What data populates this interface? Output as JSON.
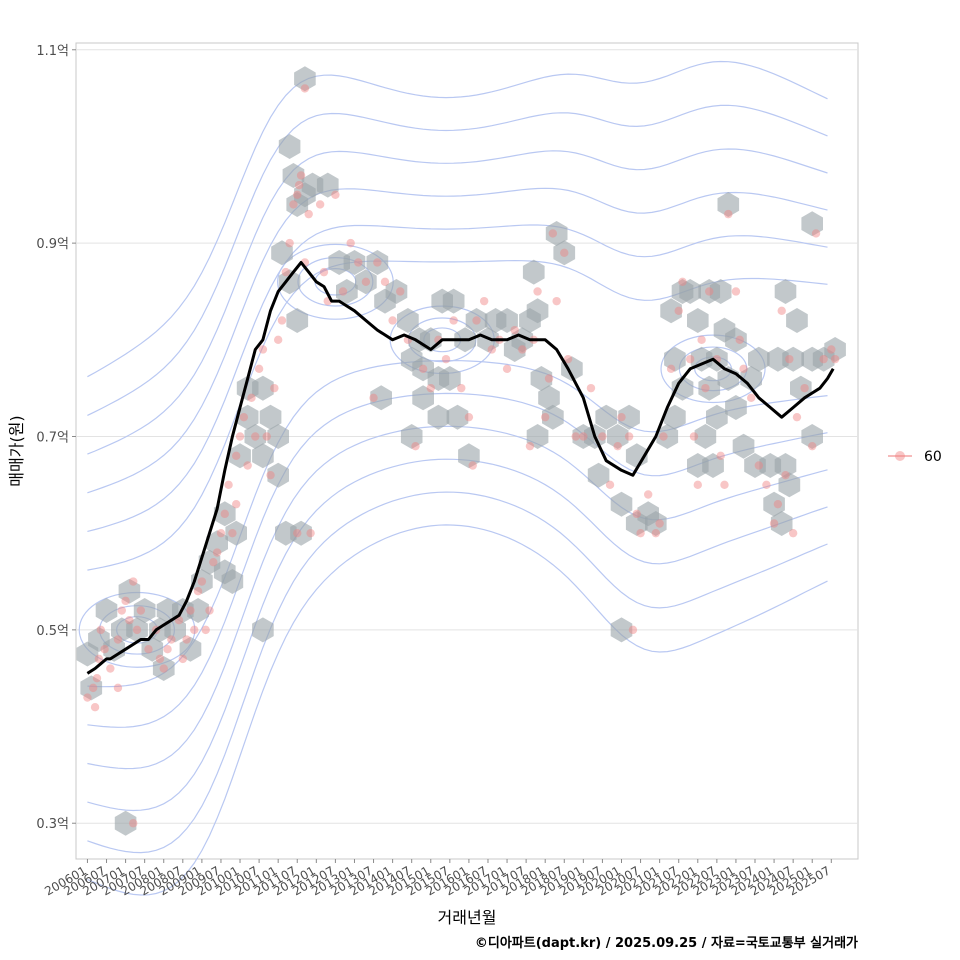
{
  "chart_data": {
    "type": "scatter",
    "title": "",
    "xlabel": "거래년월",
    "ylabel": "매매가(원)",
    "caption": "©디아파트(dapt.kr) / 2025.09.25 / 자료=국토교통부 실거래가",
    "x_ticks": [
      "200601",
      "200607",
      "200701",
      "200707",
      "200801",
      "200807",
      "200901",
      "200907",
      "201001",
      "201007",
      "201101",
      "201107",
      "201201",
      "201207",
      "201301",
      "201307",
      "201401",
      "201407",
      "201501",
      "201507",
      "201601",
      "201607",
      "201701",
      "201707",
      "201801",
      "201807",
      "201901",
      "201907",
      "202001",
      "202007",
      "202101",
      "202107",
      "202201",
      "202207",
      "202301",
      "202307",
      "202401",
      "202407",
      "202501",
      "202507"
    ],
    "y_ticks": [
      {
        "value": 0.3,
        "label": "0.3억"
      },
      {
        "value": 0.5,
        "label": "0.5억"
      },
      {
        "value": 0.7,
        "label": "0.7억"
      },
      {
        "value": 0.9,
        "label": "0.9억"
      },
      {
        "value": 1.1,
        "label": "1.1억"
      }
    ],
    "xlim": [
      2005.7,
      2026.2
    ],
    "ylim": [
      0.263,
      1.107
    ],
    "legend": {
      "label": "60",
      "position": "right"
    },
    "trend_line": {
      "name": "moving-average",
      "x": [
        2006.0,
        2006.2,
        2006.35,
        2006.5,
        2006.6,
        2006.8,
        2007.0,
        2007.2,
        2007.4,
        2007.6,
        2007.8,
        2008.0,
        2008.2,
        2008.4,
        2008.6,
        2008.8,
        2009.0,
        2009.2,
        2009.4,
        2009.6,
        2009.8,
        2010.0,
        2010.2,
        2010.4,
        2010.6,
        2010.8,
        2011.0,
        2011.2,
        2011.4,
        2011.6,
        2011.8,
        2012.0,
        2012.2,
        2012.4,
        2012.6,
        2012.8,
        2013.0,
        2013.3,
        2013.6,
        2014.0,
        2014.3,
        2014.6,
        2015.0,
        2015.3,
        2015.6,
        2016.0,
        2016.3,
        2016.6,
        2017.0,
        2017.3,
        2017.6,
        2018.0,
        2018.3,
        2018.6,
        2019.0,
        2019.3,
        2019.6,
        2020.0,
        2020.3,
        2020.6,
        2020.9,
        2021.2,
        2021.5,
        2021.8,
        2022.1,
        2022.4,
        2022.7,
        2023.0,
        2023.3,
        2023.6,
        2023.9,
        2024.2,
        2024.5,
        2024.8,
        2025.0,
        2025.2,
        2025.4,
        2025.55
      ],
      "y": [
        0.455,
        0.46,
        0.465,
        0.47,
        0.47,
        0.475,
        0.48,
        0.485,
        0.49,
        0.49,
        0.5,
        0.505,
        0.51,
        0.515,
        0.53,
        0.55,
        0.575,
        0.6,
        0.625,
        0.665,
        0.7,
        0.73,
        0.76,
        0.79,
        0.8,
        0.83,
        0.85,
        0.86,
        0.87,
        0.88,
        0.87,
        0.86,
        0.855,
        0.84,
        0.84,
        0.835,
        0.83,
        0.82,
        0.81,
        0.8,
        0.805,
        0.8,
        0.79,
        0.8,
        0.8,
        0.8,
        0.805,
        0.8,
        0.8,
        0.805,
        0.8,
        0.8,
        0.79,
        0.77,
        0.74,
        0.7,
        0.675,
        0.665,
        0.66,
        0.68,
        0.7,
        0.73,
        0.755,
        0.77,
        0.775,
        0.78,
        0.77,
        0.765,
        0.755,
        0.74,
        0.73,
        0.72,
        0.73,
        0.74,
        0.745,
        0.75,
        0.76,
        0.77
      ]
    },
    "series": [
      {
        "name": "60",
        "color": "#f08080",
        "points": [
          [
            2006.0,
            0.43
          ],
          [
            2006.15,
            0.44
          ],
          [
            2006.2,
            0.42
          ],
          [
            2006.25,
            0.45
          ],
          [
            2006.3,
            0.47
          ],
          [
            2006.35,
            0.5
          ],
          [
            2006.45,
            0.48
          ],
          [
            2006.6,
            0.46
          ],
          [
            2006.8,
            0.49
          ],
          [
            2006.9,
            0.52
          ],
          [
            2007.0,
            0.53
          ],
          [
            2007.1,
            0.51
          ],
          [
            2007.2,
            0.55
          ],
          [
            2007.3,
            0.5
          ],
          [
            2007.4,
            0.52
          ],
          [
            2007.6,
            0.48
          ],
          [
            2007.8,
            0.5
          ],
          [
            2007.9,
            0.47
          ],
          [
            2008.0,
            0.46
          ],
          [
            2008.2,
            0.49
          ],
          [
            2008.4,
            0.51
          ],
          [
            2008.5,
            0.47
          ],
          [
            2008.6,
            0.49
          ],
          [
            2008.7,
            0.52
          ],
          [
            2008.8,
            0.5
          ],
          [
            2008.9,
            0.54
          ],
          [
            2009.0,
            0.55
          ],
          [
            2009.1,
            0.5
          ],
          [
            2009.2,
            0.52
          ],
          [
            2009.3,
            0.57
          ],
          [
            2009.4,
            0.58
          ],
          [
            2009.5,
            0.6
          ],
          [
            2009.6,
            0.62
          ],
          [
            2009.7,
            0.65
          ],
          [
            2009.8,
            0.6
          ],
          [
            2009.9,
            0.68
          ],
          [
            2010.0,
            0.7
          ],
          [
            2010.1,
            0.72
          ],
          [
            2010.2,
            0.67
          ],
          [
            2010.3,
            0.74
          ],
          [
            2010.4,
            0.7
          ],
          [
            2010.5,
            0.77
          ],
          [
            2010.6,
            0.79
          ],
          [
            2010.7,
            0.7
          ],
          [
            2010.8,
            0.66
          ],
          [
            2010.9,
            0.75
          ],
          [
            2011.0,
            0.8
          ],
          [
            2011.1,
            0.82
          ],
          [
            2011.2,
            0.87
          ],
          [
            2011.3,
            0.9
          ],
          [
            2011.4,
            0.94
          ],
          [
            2011.5,
            0.95
          ],
          [
            2011.55,
            0.96
          ],
          [
            2011.6,
            0.97
          ],
          [
            2011.7,
            1.06
          ],
          [
            2011.8,
            0.93
          ],
          [
            2011.85,
            0.6
          ],
          [
            2011.7,
            0.88
          ],
          [
            2011.5,
            0.6
          ],
          [
            2012.1,
            0.94
          ],
          [
            2012.2,
            0.87
          ],
          [
            2012.3,
            0.84
          ],
          [
            2012.5,
            0.95
          ],
          [
            2012.7,
            0.85
          ],
          [
            2012.9,
            0.9
          ],
          [
            2013.1,
            0.88
          ],
          [
            2013.3,
            0.86
          ],
          [
            2013.5,
            0.74
          ],
          [
            2013.6,
            0.88
          ],
          [
            2013.8,
            0.86
          ],
          [
            2014.0,
            0.82
          ],
          [
            2014.2,
            0.85
          ],
          [
            2014.4,
            0.8
          ],
          [
            2014.6,
            0.69
          ],
          [
            2014.8,
            0.77
          ],
          [
            2015.0,
            0.75
          ],
          [
            2015.2,
            0.8
          ],
          [
            2015.4,
            0.78
          ],
          [
            2015.6,
            0.82
          ],
          [
            2015.8,
            0.75
          ],
          [
            2016.0,
            0.72
          ],
          [
            2016.1,
            0.67
          ],
          [
            2016.2,
            0.82
          ],
          [
            2016.4,
            0.84
          ],
          [
            2016.6,
            0.79
          ],
          [
            2016.8,
            0.8
          ],
          [
            2017.0,
            0.77
          ],
          [
            2017.2,
            0.81
          ],
          [
            2017.4,
            0.79
          ],
          [
            2017.6,
            0.69
          ],
          [
            2017.7,
            0.8
          ],
          [
            2017.8,
            0.85
          ],
          [
            2018.0,
            0.72
          ],
          [
            2018.1,
            0.76
          ],
          [
            2018.2,
            0.91
          ],
          [
            2018.3,
            0.84
          ],
          [
            2018.5,
            0.89
          ],
          [
            2018.6,
            0.78
          ],
          [
            2018.8,
            0.7
          ],
          [
            2019.0,
            0.7
          ],
          [
            2019.2,
            0.75
          ],
          [
            2019.5,
            0.7
          ],
          [
            2019.7,
            0.65
          ],
          [
            2019.9,
            0.69
          ],
          [
            2020.0,
            0.72
          ],
          [
            2020.2,
            0.7
          ],
          [
            2020.3,
            0.5
          ],
          [
            2020.4,
            0.62
          ],
          [
            2020.5,
            0.6
          ],
          [
            2020.7,
            0.64
          ],
          [
            2020.9,
            0.6
          ],
          [
            2021.0,
            0.61
          ],
          [
            2021.1,
            0.7
          ],
          [
            2021.3,
            0.77
          ],
          [
            2021.5,
            0.83
          ],
          [
            2021.6,
            0.86
          ],
          [
            2021.8,
            0.78
          ],
          [
            2021.9,
            0.7
          ],
          [
            2022.0,
            0.65
          ],
          [
            2022.1,
            0.8
          ],
          [
            2022.2,
            0.75
          ],
          [
            2022.3,
            0.85
          ],
          [
            2022.5,
            0.78
          ],
          [
            2022.6,
            0.68
          ],
          [
            2022.7,
            0.65
          ],
          [
            2022.8,
            0.93
          ],
          [
            2023.0,
            0.85
          ],
          [
            2023.1,
            0.8
          ],
          [
            2023.2,
            0.77
          ],
          [
            2023.4,
            0.74
          ],
          [
            2023.6,
            0.67
          ],
          [
            2023.8,
            0.65
          ],
          [
            2024.0,
            0.61
          ],
          [
            2024.1,
            0.63
          ],
          [
            2024.2,
            0.83
          ],
          [
            2024.3,
            0.66
          ],
          [
            2024.4,
            0.78
          ],
          [
            2024.5,
            0.6
          ],
          [
            2024.6,
            0.72
          ],
          [
            2024.8,
            0.75
          ],
          [
            2025.0,
            0.69
          ],
          [
            2025.1,
            0.91
          ],
          [
            2025.3,
            0.78
          ],
          [
            2025.5,
            0.79
          ],
          [
            2025.6,
            0.78
          ],
          [
            2007.2,
            0.3
          ],
          [
            2006.8,
            0.44
          ],
          [
            2008.1,
            0.48
          ],
          [
            2009.9,
            0.63
          ]
        ]
      }
    ],
    "hex_bins": [
      [
        2006.0,
        0.475
      ],
      [
        2006.3,
        0.49
      ],
      [
        2006.5,
        0.52
      ],
      [
        2006.7,
        0.48
      ],
      [
        2006.9,
        0.5
      ],
      [
        2007.1,
        0.54
      ],
      [
        2007.3,
        0.5
      ],
      [
        2007.5,
        0.52
      ],
      [
        2007.7,
        0.48
      ],
      [
        2007.9,
        0.5
      ],
      [
        2008.1,
        0.52
      ],
      [
        2008.3,
        0.5
      ],
      [
        2008.5,
        0.52
      ],
      [
        2008.7,
        0.48
      ],
      [
        2008.9,
        0.52
      ],
      [
        2009.0,
        0.55
      ],
      [
        2009.2,
        0.57
      ],
      [
        2009.4,
        0.59
      ],
      [
        2009.6,
        0.56
      ],
      [
        2009.8,
        0.55
      ],
      [
        2009.6,
        0.62
      ],
      [
        2009.9,
        0.6
      ],
      [
        2008.0,
        0.46
      ],
      [
        2006.1,
        0.44
      ],
      [
        2007.0,
        0.3
      ],
      [
        2010.0,
        0.68
      ],
      [
        2010.2,
        0.72
      ],
      [
        2010.4,
        0.7
      ],
      [
        2010.6,
        0.75
      ],
      [
        2010.8,
        0.72
      ],
      [
        2010.6,
        0.68
      ],
      [
        2010.2,
        0.75
      ],
      [
        2011.0,
        0.7
      ],
      [
        2011.0,
        0.66
      ],
      [
        2011.2,
        0.6
      ],
      [
        2011.6,
        0.6
      ],
      [
        2010.6,
        0.5
      ],
      [
        2011.1,
        0.89
      ],
      [
        2011.3,
        0.86
      ],
      [
        2011.5,
        0.82
      ],
      [
        2011.5,
        0.94
      ],
      [
        2011.4,
        0.97
      ],
      [
        2011.7,
        0.95
      ],
      [
        2011.9,
        0.96
      ],
      [
        2011.3,
        1.0
      ],
      [
        2011.7,
        1.07
      ],
      [
        2012.3,
        0.96
      ],
      [
        2012.6,
        0.88
      ],
      [
        2012.8,
        0.85
      ],
      [
        2013.0,
        0.88
      ],
      [
        2013.3,
        0.86
      ],
      [
        2013.6,
        0.88
      ],
      [
        2013.8,
        0.84
      ],
      [
        2014.1,
        0.85
      ],
      [
        2014.4,
        0.82
      ],
      [
        2014.7,
        0.8
      ],
      [
        2014.5,
        0.78
      ],
      [
        2014.8,
        0.77
      ],
      [
        2015.0,
        0.8
      ],
      [
        2015.3,
        0.84
      ],
      [
        2015.6,
        0.84
      ],
      [
        2015.9,
        0.8
      ],
      [
        2016.2,
        0.82
      ],
      [
        2016.5,
        0.8
      ],
      [
        2016.7,
        0.82
      ],
      [
        2015.2,
        0.76
      ],
      [
        2015.5,
        0.76
      ],
      [
        2015.2,
        0.72
      ],
      [
        2014.8,
        0.74
      ],
      [
        2015.7,
        0.72
      ],
      [
        2016.0,
        0.68
      ],
      [
        2013.7,
        0.74
      ],
      [
        2014.5,
        0.7
      ],
      [
        2017.0,
        0.82
      ],
      [
        2017.2,
        0.79
      ],
      [
        2017.4,
        0.8
      ],
      [
        2017.6,
        0.82
      ],
      [
        2017.7,
        0.87
      ],
      [
        2017.8,
        0.83
      ],
      [
        2017.9,
        0.76
      ],
      [
        2018.1,
        0.74
      ],
      [
        2018.3,
        0.91
      ],
      [
        2018.5,
        0.89
      ],
      [
        2018.2,
        0.72
      ],
      [
        2017.8,
        0.7
      ],
      [
        2018.7,
        0.77
      ],
      [
        2019.0,
        0.7
      ],
      [
        2019.3,
        0.7
      ],
      [
        2019.4,
        0.66
      ],
      [
        2019.6,
        0.72
      ],
      [
        2019.9,
        0.7
      ],
      [
        2020.2,
        0.72
      ],
      [
        2020.4,
        0.68
      ],
      [
        2020.0,
        0.63
      ],
      [
        2020.4,
        0.61
      ],
      [
        2020.7,
        0.62
      ],
      [
        2020.9,
        0.61
      ],
      [
        2020.0,
        0.5
      ],
      [
        2021.2,
        0.7
      ],
      [
        2021.4,
        0.72
      ],
      [
        2021.6,
        0.75
      ],
      [
        2021.4,
        0.78
      ],
      [
        2021.3,
        0.83
      ],
      [
        2021.6,
        0.85
      ],
      [
        2021.8,
        0.85
      ],
      [
        2022.0,
        0.82
      ],
      [
        2022.1,
        0.78
      ],
      [
        2022.3,
        0.75
      ],
      [
        2022.5,
        0.72
      ],
      [
        2022.2,
        0.7
      ],
      [
        2022.0,
        0.67
      ],
      [
        2022.4,
        0.67
      ],
      [
        2022.3,
        0.85
      ],
      [
        2022.6,
        0.85
      ],
      [
        2022.7,
        0.81
      ],
      [
        2022.5,
        0.78
      ],
      [
        2022.8,
        0.76
      ],
      [
        2023.0,
        0.8
      ],
      [
        2023.0,
        0.73
      ],
      [
        2023.2,
        0.69
      ],
      [
        2023.5,
        0.67
      ],
      [
        2023.4,
        0.76
      ],
      [
        2023.6,
        0.78
      ],
      [
        2023.9,
        0.67
      ],
      [
        2024.0,
        0.63
      ],
      [
        2024.2,
        0.61
      ],
      [
        2024.4,
        0.65
      ],
      [
        2024.3,
        0.67
      ],
      [
        2024.1,
        0.78
      ],
      [
        2024.5,
        0.78
      ],
      [
        2024.7,
        0.75
      ],
      [
        2024.3,
        0.85
      ],
      [
        2024.6,
        0.82
      ],
      [
        2025.0,
        0.78
      ],
      [
        2025.3,
        0.78
      ],
      [
        2025.6,
        0.79
      ],
      [
        2025.0,
        0.7
      ],
      [
        2025.0,
        0.92
      ],
      [
        2022.8,
        0.94
      ]
    ],
    "density_contours": "2D kernel density (level lines, blue)"
  }
}
